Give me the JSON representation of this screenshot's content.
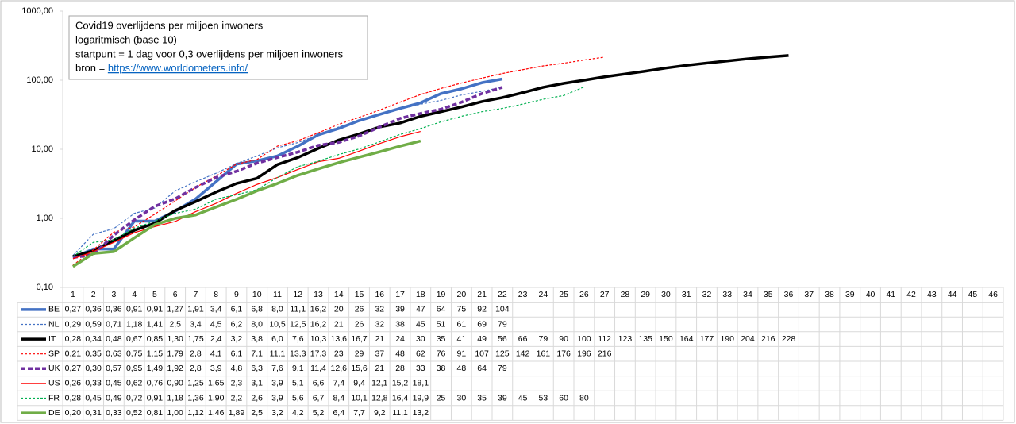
{
  "chart_data": {
    "type": "line",
    "title": "Covid19 overlijdens per miljoen inwoners",
    "subtitle": "logaritmisch (base 10)",
    "note": "startpunt = 1 dag voor 0,3 overlijdens  per miljoen inwoners",
    "source_label": "bron = ",
    "source_url": "https://www.worldometers.info/",
    "y_scale": "log",
    "grid": false,
    "ylim": [
      0.1,
      1000
    ],
    "yticks": [
      {
        "value": 0.1,
        "label": "0,10"
      },
      {
        "value": 1,
        "label": "1,00"
      },
      {
        "value": 10,
        "label": "10,00"
      },
      {
        "value": 100,
        "label": "100,00"
      },
      {
        "value": 1000,
        "label": "1000,00"
      }
    ],
    "categories": [
      1,
      2,
      3,
      4,
      5,
      6,
      7,
      8,
      9,
      10,
      11,
      12,
      13,
      14,
      15,
      16,
      17,
      18,
      19,
      20,
      21,
      22,
      23,
      24,
      25,
      26,
      27,
      28,
      29,
      30,
      31,
      32,
      33,
      34,
      35,
      36,
      37,
      38,
      39,
      40,
      41,
      42,
      43,
      44,
      45,
      46
    ],
    "series": [
      {
        "name": "BE",
        "color": "#4472c4",
        "style": "solid",
        "weight": "thick",
        "values": [
          0.27,
          0.36,
          0.36,
          0.91,
          0.91,
          1.27,
          1.91,
          3.4,
          6.1,
          6.8,
          8.0,
          11.1,
          16.2,
          20,
          26,
          32,
          39,
          47,
          64,
          75,
          92,
          104,
          null,
          null,
          null,
          null,
          null,
          null,
          null,
          null,
          null,
          null,
          null,
          null,
          null,
          null,
          null,
          null,
          null,
          null,
          null,
          null,
          null,
          null,
          null,
          null
        ],
        "value_labels": [
          "0,27",
          "0,36",
          "0,36",
          "0,91",
          "0,91",
          "1,27",
          "1,91",
          "3,4",
          "6,1",
          "6,8",
          "8,0",
          "11,1",
          "16,2",
          "20",
          "26",
          "32",
          "39",
          "47",
          "64",
          "75",
          "92",
          "104",
          null,
          null,
          null,
          null,
          null,
          null,
          null,
          null,
          null,
          null,
          null,
          null,
          null,
          null,
          null,
          null,
          null,
          null,
          null,
          null,
          null,
          null,
          null,
          null
        ]
      },
      {
        "name": "NL",
        "color": "#4472c4",
        "style": "dashed",
        "weight": "thin",
        "values": [
          0.29,
          0.59,
          0.71,
          1.18,
          1.41,
          2.5,
          3.4,
          4.5,
          6.2,
          8.0,
          10.5,
          12.5,
          16.2,
          21,
          26,
          32,
          38,
          45,
          51,
          61,
          69,
          79,
          null,
          null,
          null,
          null,
          null,
          null,
          null,
          null,
          null,
          null,
          null,
          null,
          null,
          null,
          null,
          null,
          null,
          null,
          null,
          null,
          null,
          null,
          null,
          null
        ],
        "value_labels": [
          "0,29",
          "0,59",
          "0,71",
          "1,18",
          "1,41",
          "2,5",
          "3,4",
          "4,5",
          "6,2",
          "8,0",
          "10,5",
          "12,5",
          "16,2",
          "21",
          "26",
          "32",
          "38",
          "45",
          "51",
          "61",
          "69",
          "79",
          null,
          null,
          null,
          null,
          null,
          null,
          null,
          null,
          null,
          null,
          null,
          null,
          null,
          null,
          null,
          null,
          null,
          null,
          null,
          null,
          null,
          null,
          null,
          null
        ]
      },
      {
        "name": "IT",
        "color": "#000000",
        "style": "solid",
        "weight": "thick",
        "values": [
          0.28,
          0.34,
          0.48,
          0.67,
          0.85,
          1.3,
          1.75,
          2.4,
          3.2,
          3.8,
          6.0,
          7.6,
          10.3,
          13.6,
          16.7,
          21,
          24,
          30,
          35,
          41,
          49,
          56,
          66,
          79,
          90,
          100,
          112,
          123,
          135,
          150,
          164,
          177,
          190,
          204,
          216,
          228,
          null,
          null,
          null,
          null,
          null,
          null,
          null,
          null,
          null,
          null
        ],
        "value_labels": [
          "0,28",
          "0,34",
          "0,48",
          "0,67",
          "0,85",
          "1,30",
          "1,75",
          "2,4",
          "3,2",
          "3,8",
          "6,0",
          "7,6",
          "10,3",
          "13,6",
          "16,7",
          "21",
          "24",
          "30",
          "35",
          "41",
          "49",
          "56",
          "66",
          "79",
          "90",
          "100",
          "112",
          "123",
          "135",
          "150",
          "164",
          "177",
          "190",
          "204",
          "216",
          "228",
          null,
          null,
          null,
          null,
          null,
          null,
          null,
          null,
          null,
          null
        ]
      },
      {
        "name": "SP",
        "color": "#ff0000",
        "style": "dashed",
        "weight": "thin",
        "values": [
          0.21,
          0.35,
          0.63,
          0.75,
          1.15,
          1.79,
          2.8,
          4.1,
          6.1,
          7.1,
          11.1,
          13.3,
          17.3,
          23,
          29,
          37,
          48,
          62,
          76,
          91,
          107,
          125,
          142,
          161,
          176,
          196,
          216,
          null,
          null,
          null,
          null,
          null,
          null,
          null,
          null,
          null,
          null,
          null,
          null,
          null,
          null,
          null,
          null,
          null,
          null,
          null
        ],
        "value_labels": [
          "0,21",
          "0,35",
          "0,63",
          "0,75",
          "1,15",
          "1,79",
          "2,8",
          "4,1",
          "6,1",
          "7,1",
          "11,1",
          "13,3",
          "17,3",
          "23",
          "29",
          "37",
          "48",
          "62",
          "76",
          "91",
          "107",
          "125",
          "142",
          "161",
          "176",
          "196",
          "216",
          null,
          null,
          null,
          null,
          null,
          null,
          null,
          null,
          null,
          null,
          null,
          null,
          null,
          null,
          null,
          null,
          null,
          null,
          null
        ]
      },
      {
        "name": "UK",
        "color": "#7030a0",
        "style": "dashed",
        "weight": "thick",
        "values": [
          0.27,
          0.3,
          0.57,
          0.95,
          1.49,
          1.92,
          2.8,
          3.9,
          4.8,
          6.3,
          7.6,
          9.1,
          11.4,
          12.6,
          15.6,
          21,
          28,
          33,
          38,
          48,
          64,
          79,
          null,
          null,
          null,
          null,
          null,
          null,
          null,
          null,
          null,
          null,
          null,
          null,
          null,
          null,
          null,
          null,
          null,
          null,
          null,
          null,
          null,
          null,
          null,
          null
        ],
        "value_labels": [
          "0,27",
          "0,30",
          "0,57",
          "0,95",
          "1,49",
          "1,92",
          "2,8",
          "3,9",
          "4,8",
          "6,3",
          "7,6",
          "9,1",
          "11,4",
          "12,6",
          "15,6",
          "21",
          "28",
          "33",
          "38",
          "48",
          "64",
          "79",
          null,
          null,
          null,
          null,
          null,
          null,
          null,
          null,
          null,
          null,
          null,
          null,
          null,
          null,
          null,
          null,
          null,
          null,
          null,
          null,
          null,
          null,
          null,
          null
        ]
      },
      {
        "name": "US",
        "color": "#ff0000",
        "style": "solid",
        "weight": "thin",
        "values": [
          0.26,
          0.33,
          0.45,
          0.62,
          0.76,
          0.9,
          1.25,
          1.65,
          2.3,
          3.1,
          3.9,
          5.1,
          6.6,
          7.4,
          9.4,
          12.1,
          15.2,
          18.1,
          null,
          null,
          null,
          null,
          null,
          null,
          null,
          null,
          null,
          null,
          null,
          null,
          null,
          null,
          null,
          null,
          null,
          null,
          null,
          null,
          null,
          null,
          null,
          null,
          null,
          null,
          null,
          null
        ],
        "value_labels": [
          "0,26",
          "0,33",
          "0,45",
          "0,62",
          "0,76",
          "0,90",
          "1,25",
          "1,65",
          "2,3",
          "3,1",
          "3,9",
          "5,1",
          "6,6",
          "7,4",
          "9,4",
          "12,1",
          "15,2",
          "18,1",
          null,
          null,
          null,
          null,
          null,
          null,
          null,
          null,
          null,
          null,
          null,
          null,
          null,
          null,
          null,
          null,
          null,
          null,
          null,
          null,
          null,
          null,
          null,
          null,
          null,
          null,
          null,
          null
        ]
      },
      {
        "name": "FR",
        "color": "#00b050",
        "style": "dashed",
        "weight": "thin",
        "values": [
          0.28,
          0.45,
          0.49,
          0.72,
          0.91,
          1.18,
          1.36,
          1.9,
          2.2,
          2.6,
          3.9,
          5.6,
          6.7,
          8.4,
          10.1,
          12.8,
          16.4,
          19.9,
          25,
          30,
          35,
          39,
          45,
          53,
          60,
          80,
          null,
          null,
          null,
          null,
          null,
          null,
          null,
          null,
          null,
          null,
          null,
          null,
          null,
          null,
          null,
          null,
          null,
          null,
          null,
          null
        ],
        "value_labels": [
          "0,28",
          "0,45",
          "0,49",
          "0,72",
          "0,91",
          "1,18",
          "1,36",
          "1,90",
          "2,2",
          "2,6",
          "3,9",
          "5,6",
          "6,7",
          "8,4",
          "10,1",
          "12,8",
          "16,4",
          "19,9",
          "25",
          "30",
          "35",
          "39",
          "45",
          "53",
          "60",
          "80",
          null,
          null,
          null,
          null,
          null,
          null,
          null,
          null,
          null,
          null,
          null,
          null,
          null,
          null,
          null,
          null,
          null,
          null,
          null,
          null
        ]
      },
      {
        "name": "DE",
        "color": "#70ad47",
        "style": "solid",
        "weight": "thick",
        "values": [
          0.2,
          0.31,
          0.33,
          0.52,
          0.81,
          1.0,
          1.12,
          1.46,
          1.89,
          2.5,
          3.2,
          4.2,
          5.2,
          6.4,
          7.7,
          9.2,
          11.1,
          13.2,
          null,
          null,
          null,
          null,
          null,
          null,
          null,
          null,
          null,
          null,
          null,
          null,
          null,
          null,
          null,
          null,
          null,
          null,
          null,
          null,
          null,
          null,
          null,
          null,
          null,
          null,
          null,
          null
        ],
        "value_labels": [
          "0,20",
          "0,31",
          "0,33",
          "0,52",
          "0,81",
          "1,00",
          "1,12",
          "1,46",
          "1,89",
          "2,5",
          "3,2",
          "4,2",
          "5,2",
          "6,4",
          "7,7",
          "9,2",
          "11,1",
          "13,2",
          null,
          null,
          null,
          null,
          null,
          null,
          null,
          null,
          null,
          null,
          null,
          null,
          null,
          null,
          null,
          null,
          null,
          null,
          null,
          null,
          null,
          null,
          null,
          null,
          null,
          null,
          null,
          null
        ]
      }
    ]
  }
}
